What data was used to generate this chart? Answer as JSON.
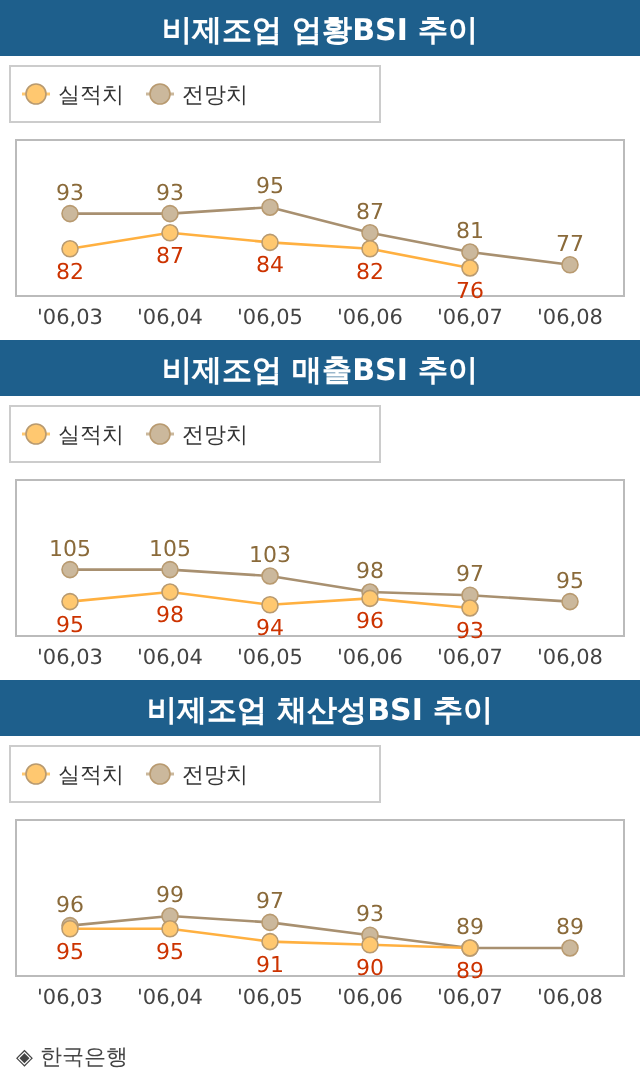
{
  "chart_data": [
    {
      "type": "line",
      "title": "비제조업 업황BSI 추이",
      "categories": [
        "'06,03",
        "'06,04",
        "'06,05",
        "'06,06",
        "'06,07",
        "'06,08"
      ],
      "series": [
        {
          "name": "실적치",
          "color": "#ffc870",
          "values": [
            82,
            87,
            84,
            82,
            76,
            null
          ]
        },
        {
          "name": "전망치",
          "color": "#cbb89c",
          "values": [
            93,
            93,
            95,
            87,
            81,
            77
          ]
        }
      ],
      "data_labels": true,
      "marker": "circle",
      "legend": "top left"
    },
    {
      "type": "line",
      "title": "비제조업 매출BSI 추이",
      "categories": [
        "'06,03",
        "'06,04",
        "'06,05",
        "'06,06",
        "'06,07",
        "'06,08"
      ],
      "series": [
        {
          "name": "실적치",
          "color": "#ffc870",
          "values": [
            95,
            98,
            94,
            96,
            93,
            null
          ]
        },
        {
          "name": "전망치",
          "color": "#cbb89c",
          "values": [
            105,
            105,
            103,
            98,
            97,
            95
          ]
        }
      ],
      "data_labels": true,
      "marker": "circle",
      "legend": "top left"
    },
    {
      "type": "line",
      "title": "비제조업 채산성BSI 추이",
      "categories": [
        "'06,03",
        "'06,04",
        "'06,05",
        "'06,06",
        "'06,07",
        "'06,08"
      ],
      "series": [
        {
          "name": "실적치",
          "color": "#ffc870",
          "values": [
            95,
            95,
            91,
            90,
            89,
            null
          ]
        },
        {
          "name": "전망치",
          "color": "#cbb89c",
          "values": [
            96,
            99,
            97,
            93,
            89,
            89
          ]
        }
      ],
      "data_labels": true,
      "marker": "circle",
      "legend": "top left",
      "annotations": [
        "◈ 한국은행"
      ]
    }
  ]
}
